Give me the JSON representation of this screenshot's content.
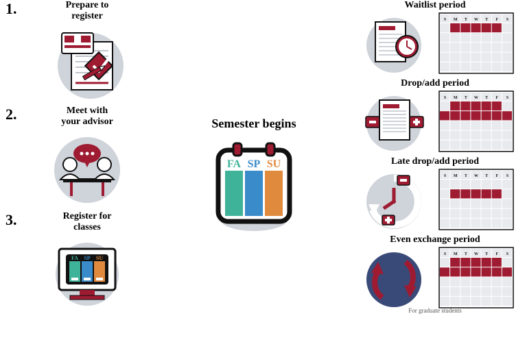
{
  "colors": {
    "crimson": "#9e1b32",
    "crimson_dark": "#7a1426",
    "black": "#111111",
    "grey_bg": "#cfd3da",
    "grey_light": "#e8eaee",
    "grey_lines": "#bfc4cc",
    "teal": "#3fb39a",
    "blue": "#3a8bc9",
    "orange": "#e08a3e",
    "white": "#ffffff"
  },
  "typography": {
    "title_font": "Georgia, serif",
    "step_num_size": 22,
    "step_title_size": 14,
    "mid_title_size": 18,
    "period_title_size": 14,
    "footnote_size": 9
  },
  "left_steps": [
    {
      "num": "1.",
      "title_l1": "Prepare to",
      "title_l2": "register",
      "icon": "prepare"
    },
    {
      "num": "2.",
      "title_l1": "Meet with",
      "title_l2": "your advisor",
      "icon": "advisor"
    },
    {
      "num": "3.",
      "title_l1": "Register for",
      "title_l2": "classes",
      "icon": "register"
    }
  ],
  "semester": {
    "title": "Semester begins",
    "labels": {
      "fa": "FA",
      "sp": "SP",
      "su": "SU"
    }
  },
  "calendar": {
    "days": [
      "S",
      "M",
      "T",
      "W",
      "T",
      "F",
      "S"
    ],
    "rows": 5,
    "cols": 7
  },
  "periods": [
    {
      "title": "Waitlist period",
      "icon": "waitlist",
      "highlight_rows": [
        0
      ],
      "highlight_cols_row0": [
        1,
        2,
        3,
        4,
        5
      ]
    },
    {
      "title": "Drop/add period",
      "icon": "dropadd",
      "highlight_rows": [
        0,
        1
      ],
      "highlight_cols_row0": [
        1,
        2,
        3,
        4,
        5
      ],
      "highlight_cols_row1": [
        0,
        1,
        2,
        3,
        4,
        5,
        6
      ]
    },
    {
      "title": "Late drop/add period",
      "icon": "latedrop",
      "highlight_rows": [
        1
      ],
      "highlight_cols_row1": [
        1,
        2,
        3,
        4,
        5
      ]
    },
    {
      "title": "Even exchange period",
      "icon": "exchange",
      "highlight_rows": [
        0,
        1
      ],
      "highlight_cols_row0": [
        1,
        2,
        3,
        4,
        5
      ],
      "highlight_cols_row1": [
        0,
        1,
        2,
        3,
        4,
        5,
        6
      ],
      "footnote": "For graduate students"
    }
  ]
}
